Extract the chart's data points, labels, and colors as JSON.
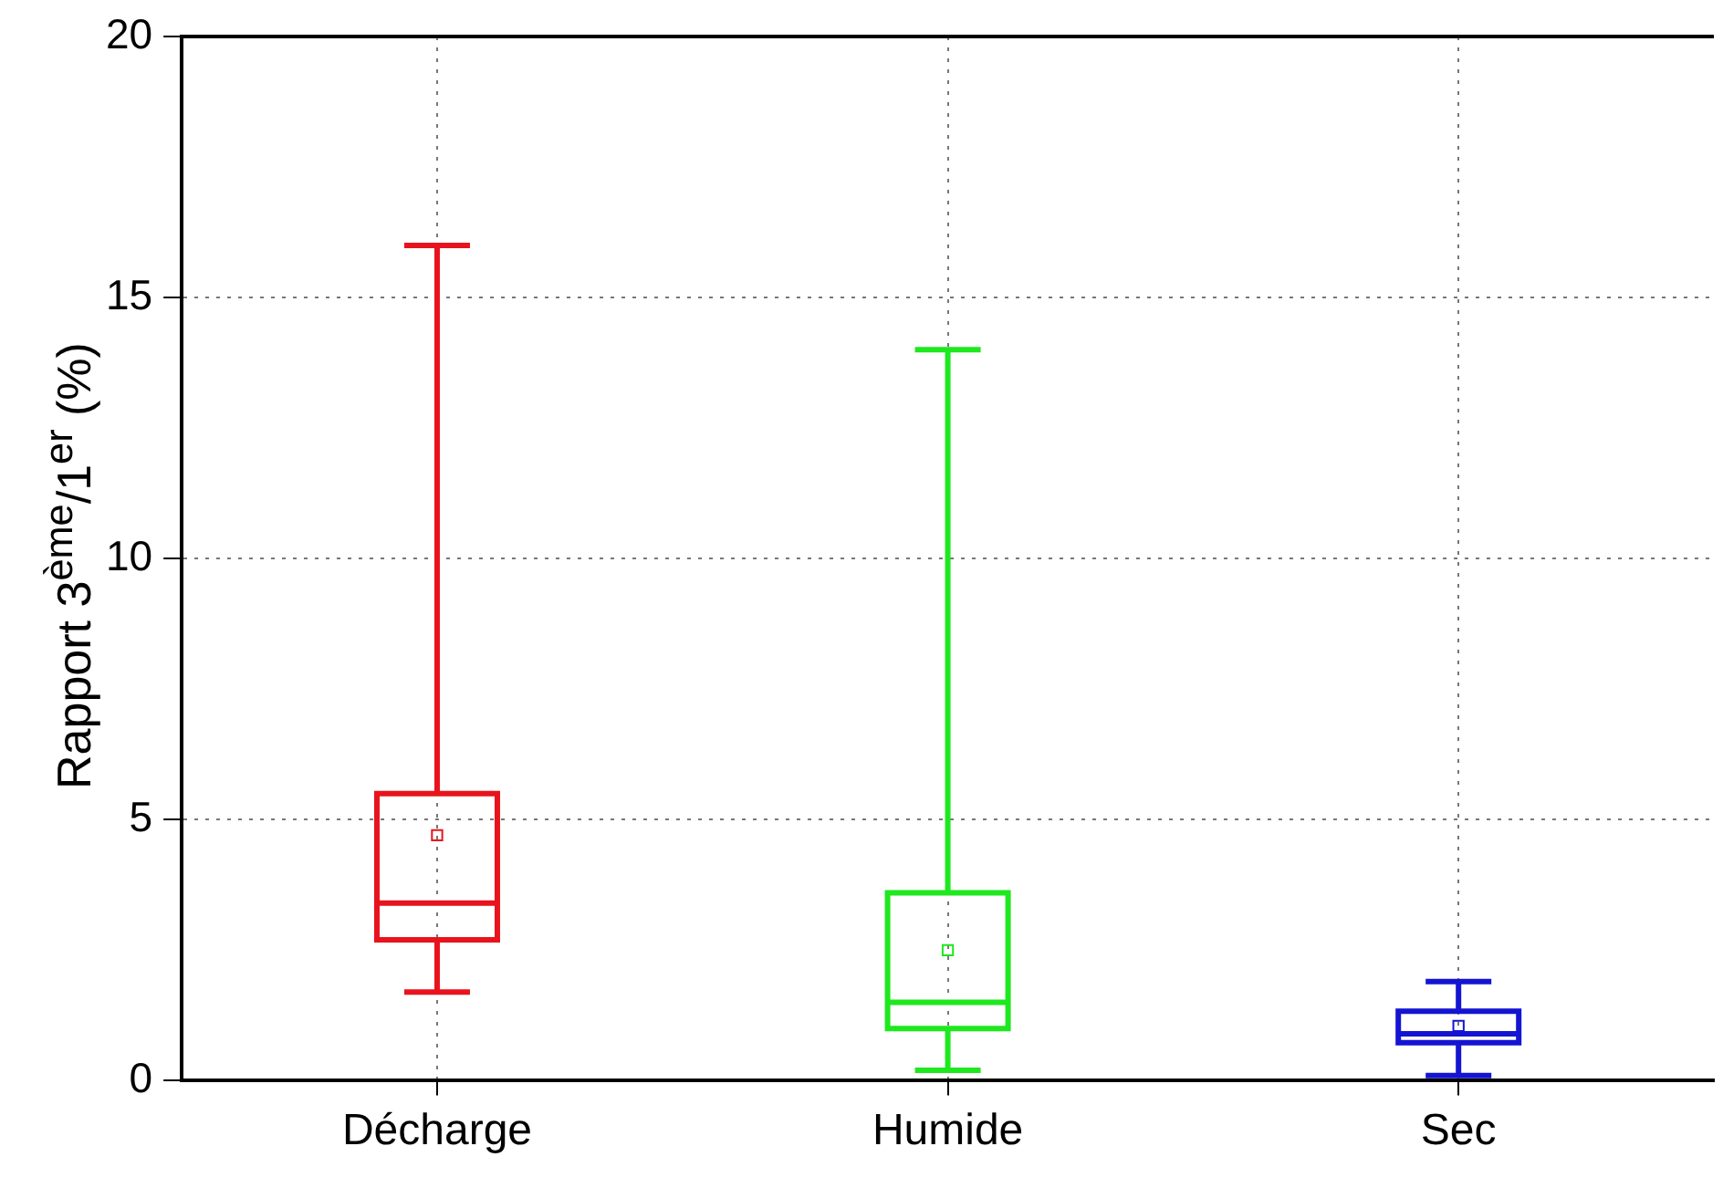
{
  "chart_data": {
    "type": "box",
    "ylabel": "Rapport 3$^{ème}$/1$^{er}$ (%)",
    "categories": [
      "Décharge",
      "Humide",
      "Sec"
    ],
    "boxes": [
      {
        "low": 1.7,
        "q1": 2.7,
        "median": 3.4,
        "q3": 5.5,
        "high": 16,
        "mean": 4.7
      },
      {
        "low": 0.2,
        "q1": 1.0,
        "median": 1.5,
        "q3": 3.6,
        "high": 14,
        "mean": 2.5
      },
      {
        "low": 0.1,
        "q1": 0.73,
        "median": 0.9,
        "q3": 1.33,
        "high": 1.9,
        "mean": 1.05
      }
    ],
    "colors": [
      "#e8131c",
      "#1ee81e",
      "#1414d2"
    ],
    "ylim": [
      0,
      20
    ],
    "yticks": [
      0,
      5,
      10,
      15,
      20
    ],
    "grid": true,
    "legend": false,
    "marker": "square"
  }
}
